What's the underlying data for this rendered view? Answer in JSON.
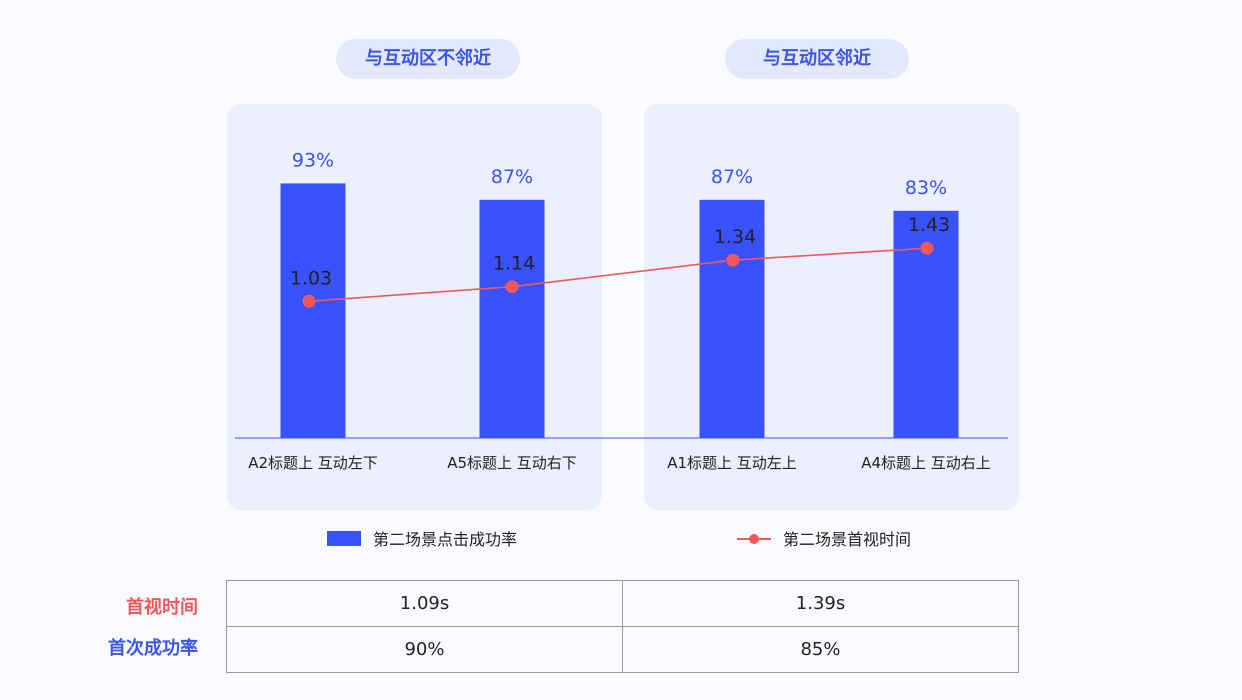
{
  "groups": [
    {
      "label": "与互动区不邻近"
    },
    {
      "label": "与互动区邻近"
    }
  ],
  "chart_data": {
    "type": "bar",
    "categories": [
      "A2标题上 互动左下",
      "A5标题上 互动右下",
      "A1标题上 互动左上",
      "A4标题上 互动右上"
    ],
    "series": [
      {
        "name": "第二场景点击成功率",
        "type": "bar",
        "values": [
          93,
          87,
          87,
          83
        ],
        "labels": [
          "93%",
          "87%",
          "87%",
          "83%"
        ],
        "color": "#3852ff"
      },
      {
        "name": "第二场景首视时间",
        "type": "line",
        "values": [
          1.03,
          1.14,
          1.34,
          1.43
        ],
        "labels": [
          "1.03",
          "1.14",
          "1.34",
          "1.43"
        ],
        "color": "#f0585b"
      }
    ],
    "bar_ylim": [
      0,
      160
    ],
    "line_ylim": [
      0,
      3.3
    ],
    "grid": false,
    "legend_position": "bottom"
  },
  "legend": {
    "bar_label": "第二场景点击成功率",
    "line_label": "第二场景首视时间"
  },
  "summary": {
    "rows": [
      {
        "label": "首视时间",
        "color": "#f0585b",
        "values": [
          "1.09s",
          "1.39s"
        ]
      },
      {
        "label": "首次成功率",
        "color": "#3b55ea",
        "values": [
          "90%",
          "85%"
        ]
      }
    ]
  },
  "colors": {
    "bar": "#3852ff",
    "line": "#f0585b",
    "panel": "#eceffd",
    "pill": "#e4e8fb",
    "pill_text": "#3b55ea",
    "bar_label": "#3b55ea"
  }
}
